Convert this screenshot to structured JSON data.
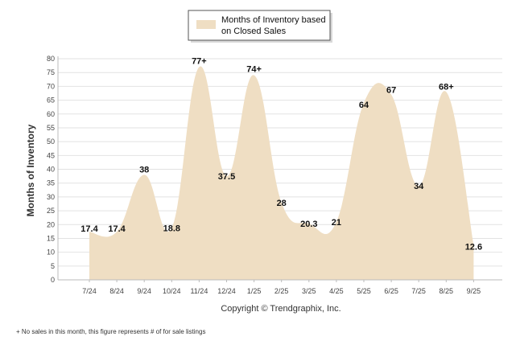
{
  "chart_data": {
    "type": "area",
    "title": "",
    "xlabel": "",
    "ylabel": "Months of Inventory",
    "ylim": [
      0,
      80
    ],
    "yticks": [
      0,
      5,
      10,
      15,
      20,
      25,
      30,
      35,
      40,
      45,
      50,
      55,
      60,
      65,
      70,
      75,
      80
    ],
    "grid": true,
    "legend_position": "top-center",
    "categories": [
      "7/24",
      "8/24",
      "9/24",
      "10/24",
      "11/24",
      "12/24",
      "1/25",
      "2/25",
      "3/25",
      "4/25",
      "5/25",
      "6/25",
      "7/25",
      "8/25",
      "9/25"
    ],
    "series": [
      {
        "name": "Months of Inventory based on Closed Sales",
        "color": "#efdec3",
        "values": [
          17.4,
          17.4,
          38,
          18.8,
          77,
          37.5,
          74,
          28,
          20.3,
          21,
          64,
          67,
          34,
          68,
          12.6
        ],
        "data_labels": [
          "17.4",
          "17.4",
          "38",
          "18.8",
          "77+",
          "37.5",
          "74+",
          "28",
          "20.3",
          "21",
          "64",
          "67",
          "34",
          "68+",
          "12.6"
        ]
      }
    ]
  },
  "legend": {
    "line1": "Months of Inventory based",
    "line2": "on Closed Sales"
  },
  "copyright": "Copyright © Trendgraphix, Inc.",
  "footnote": "+  No sales in this month, this figure represents # of for sale listings",
  "colors": {
    "fill": "#efdec3",
    "grid": "#e2e2e2",
    "axis": "#bbbbbb"
  }
}
